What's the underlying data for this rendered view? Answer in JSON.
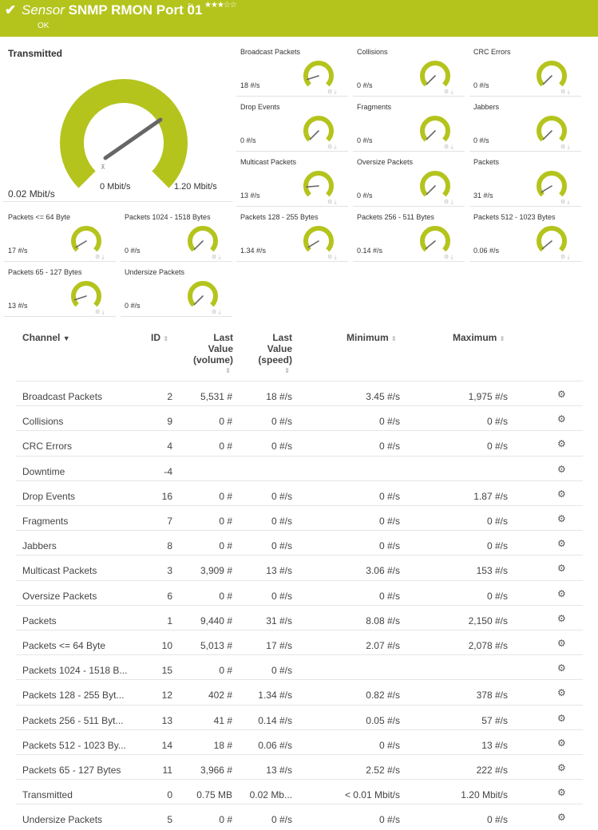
{
  "header": {
    "title_prefix": "Sensor",
    "title": "SNMP RMON Port 01",
    "status": "OK",
    "stars": "★★★☆☆",
    "accent_color": "#b4c41d"
  },
  "big_gauge": {
    "title": "Transmitted",
    "value": "0.02 Mbit/s",
    "min_label": "0 Mbit/s",
    "max_label": "1.20 Mbit/s",
    "level": 0.02
  },
  "gauges": [
    {
      "label": "Broadcast Packets",
      "value": "18 #/s",
      "level": 0.1
    },
    {
      "label": "Collisions",
      "value": "0 #/s",
      "level": 0.0
    },
    {
      "label": "CRC Errors",
      "value": "0 #/s",
      "level": 0.0
    },
    {
      "label": "Drop Events",
      "value": "0 #/s",
      "level": 0.0
    },
    {
      "label": "Fragments",
      "value": "0 #/s",
      "level": 0.0
    },
    {
      "label": "Jabbers",
      "value": "0 #/s",
      "level": 0.0
    },
    {
      "label": "Multicast Packets",
      "value": "13 #/s",
      "level": 0.15
    },
    {
      "label": "Oversize Packets",
      "value": "0 #/s",
      "level": 0.0
    },
    {
      "label": "Packets",
      "value": "31 #/s",
      "level": 0.05
    },
    {
      "label": "Packets <= 64 Byte",
      "value": "17 #/s",
      "level": 0.05
    },
    {
      "label": "Packets 1024 - 1518 Bytes",
      "value": "0 #/s",
      "level": 0.0
    },
    {
      "label": "Packets 128 - 255 Bytes",
      "value": "1.34 #/s",
      "level": 0.05
    },
    {
      "label": "Packets 256 - 511 Bytes",
      "value": "0.14 #/s",
      "level": 0.02
    },
    {
      "label": "Packets 512 - 1023 Bytes",
      "value": "0.06 #/s",
      "level": 0.02
    },
    {
      "label": "Packets 65 - 127 Bytes",
      "value": "13 #/s",
      "level": 0.1
    },
    {
      "label": "Undersize Packets",
      "value": "0 #/s",
      "level": 0.0
    }
  ],
  "table": {
    "headers": {
      "channel": "Channel",
      "id": "ID",
      "last_value_volume": [
        "Last",
        "Value",
        "(volume)"
      ],
      "last_value_speed": [
        "Last",
        "Value",
        "(speed)"
      ],
      "minimum": "Minimum",
      "maximum": "Maximum"
    },
    "rows": [
      {
        "name": "Broadcast Packets",
        "id": "2",
        "volume": "5,531 #",
        "speed": "18 #/s",
        "min": "3.45 #/s",
        "max": "1,975 #/s"
      },
      {
        "name": "Collisions",
        "id": "9",
        "volume": "0 #",
        "speed": "0 #/s",
        "min": "0 #/s",
        "max": "0 #/s"
      },
      {
        "name": "CRC Errors",
        "id": "4",
        "volume": "0 #",
        "speed": "0 #/s",
        "min": "0 #/s",
        "max": "0 #/s"
      },
      {
        "name": "Downtime",
        "id": "-4",
        "volume": "",
        "speed": "",
        "min": "",
        "max": ""
      },
      {
        "name": "Drop Events",
        "id": "16",
        "volume": "0 #",
        "speed": "0 #/s",
        "min": "0 #/s",
        "max": "1.87 #/s"
      },
      {
        "name": "Fragments",
        "id": "7",
        "volume": "0 #",
        "speed": "0 #/s",
        "min": "0 #/s",
        "max": "0 #/s"
      },
      {
        "name": "Jabbers",
        "id": "8",
        "volume": "0 #",
        "speed": "0 #/s",
        "min": "0 #/s",
        "max": "0 #/s"
      },
      {
        "name": "Multicast Packets",
        "id": "3",
        "volume": "3,909 #",
        "speed": "13 #/s",
        "min": "3.06 #/s",
        "max": "153 #/s"
      },
      {
        "name": "Oversize Packets",
        "id": "6",
        "volume": "0 #",
        "speed": "0 #/s",
        "min": "0 #/s",
        "max": "0 #/s"
      },
      {
        "name": "Packets",
        "id": "1",
        "volume": "9,440 #",
        "speed": "31 #/s",
        "min": "8.08 #/s",
        "max": "2,150 #/s"
      },
      {
        "name": "Packets <= 64 Byte",
        "id": "10",
        "volume": "5,013 #",
        "speed": "17 #/s",
        "min": "2.07 #/s",
        "max": "2,078 #/s"
      },
      {
        "name": "Packets 1024 - 1518 B...",
        "id": "15",
        "volume": "0 #",
        "speed": "0 #/s",
        "min": "",
        "max": ""
      },
      {
        "name": "Packets 128 - 255 Byt...",
        "id": "12",
        "volume": "402 #",
        "speed": "1.34 #/s",
        "min": "0.82 #/s",
        "max": "378 #/s"
      },
      {
        "name": "Packets 256 - 511 Byt...",
        "id": "13",
        "volume": "41 #",
        "speed": "0.14 #/s",
        "min": "0.05 #/s",
        "max": "57 #/s"
      },
      {
        "name": "Packets 512 - 1023 By...",
        "id": "14",
        "volume": "18 #",
        "speed": "0.06 #/s",
        "min": "0 #/s",
        "max": "13 #/s"
      },
      {
        "name": "Packets 65 - 127 Bytes",
        "id": "11",
        "volume": "3,966 #",
        "speed": "13 #/s",
        "min": "2.52 #/s",
        "max": "222 #/s"
      },
      {
        "name": "Transmitted",
        "id": "0",
        "volume": "0.75 MB",
        "speed": "0.02 Mb...",
        "min": "< 0.01 Mbit/s",
        "max": "1.20 Mbit/s"
      },
      {
        "name": "Undersize Packets",
        "id": "5",
        "volume": "0 #",
        "speed": "0 #/s",
        "min": "0 #/s",
        "max": "0 #/s"
      }
    ]
  }
}
